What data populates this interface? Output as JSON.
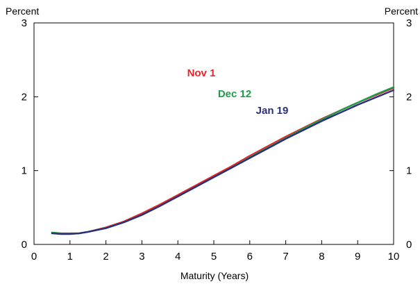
{
  "chart_data": {
    "type": "line",
    "title": "",
    "xlabel": "Maturity (Years)",
    "ylabel_left": "Percent",
    "ylabel_right": "Percent",
    "xlim": [
      0,
      10
    ],
    "ylim": [
      0,
      3
    ],
    "x_ticks": [
      "0",
      "1",
      "2",
      "3",
      "4",
      "5",
      "6",
      "7",
      "8",
      "9",
      "10"
    ],
    "y_ticks": [
      "0",
      "1",
      "2",
      "3"
    ],
    "grid": false,
    "x": [
      0.5,
      0.75,
      1,
      1.25,
      1.5,
      2,
      2.5,
      3,
      3.5,
      4,
      4.5,
      5,
      5.5,
      6,
      6.5,
      7,
      7.5,
      8,
      8.5,
      9,
      9.5,
      10
    ],
    "series": [
      {
        "name": "Nov 1",
        "color": "#e8242b",
        "values": [
          0.16,
          0.15,
          0.15,
          0.15,
          0.17,
          0.23,
          0.31,
          0.42,
          0.54,
          0.67,
          0.8,
          0.93,
          1.06,
          1.2,
          1.33,
          1.46,
          1.58,
          1.7,
          1.81,
          1.92,
          2.02,
          2.12
        ]
      },
      {
        "name": "Dec 12",
        "color": "#1e9c4a",
        "values": [
          0.16,
          0.15,
          0.15,
          0.15,
          0.17,
          0.22,
          0.3,
          0.4,
          0.52,
          0.65,
          0.78,
          0.91,
          1.04,
          1.18,
          1.31,
          1.44,
          1.57,
          1.69,
          1.81,
          1.92,
          2.03,
          2.13
        ]
      },
      {
        "name": "Jan 19",
        "color": "#2a2f7a",
        "values": [
          0.15,
          0.14,
          0.14,
          0.15,
          0.17,
          0.22,
          0.3,
          0.4,
          0.52,
          0.65,
          0.78,
          0.91,
          1.04,
          1.17,
          1.3,
          1.43,
          1.55,
          1.67,
          1.78,
          1.89,
          1.99,
          2.09
        ]
      }
    ]
  }
}
